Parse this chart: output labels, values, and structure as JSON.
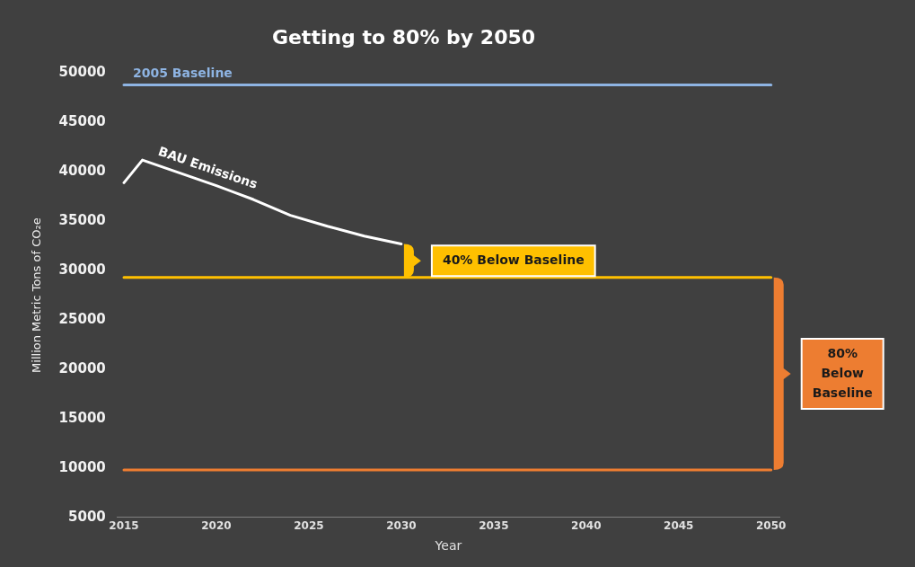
{
  "chart_data": {
    "type": "line",
    "title": "Getting to 80% by 2050",
    "xlabel": "Year",
    "ylabel": "Million Metric Tons of CO₂e",
    "xlim": [
      2014.6,
      2050.5
    ],
    "xticks": [
      2015,
      2020,
      2025,
      2030,
      2035,
      2040,
      2045,
      2050
    ],
    "ylim": [
      5000,
      50000
    ],
    "yticks": [
      5000,
      10000,
      15000,
      20000,
      25000,
      30000,
      35000,
      40000,
      45000,
      50000
    ],
    "grid": false,
    "legend": false,
    "marker": "none",
    "line_style": "solid",
    "series": [
      {
        "name": "2005 Baseline",
        "color": "#8eb4e3",
        "x": [
          2015,
          2050
        ],
        "values": [
          48800,
          48800
        ]
      },
      {
        "name": "BAU Emissions",
        "color": "#ffffff",
        "x": [
          2015,
          2016,
          2018,
          2020,
          2022,
          2024,
          2026,
          2028,
          2030
        ],
        "values": [
          38900,
          41200,
          39900,
          38600,
          37200,
          35600,
          34500,
          33500,
          32700
        ]
      },
      {
        "color": "#ffc000",
        "x": [
          2015,
          2050
        ],
        "values": [
          29300,
          29300
        ]
      },
      {
        "color": "#ed7d31",
        "x": [
          2015,
          2050
        ],
        "values": [
          9800,
          9800
        ]
      }
    ],
    "annotations": [
      "40% Below Baseline",
      "80% Below Baseline"
    ]
  }
}
